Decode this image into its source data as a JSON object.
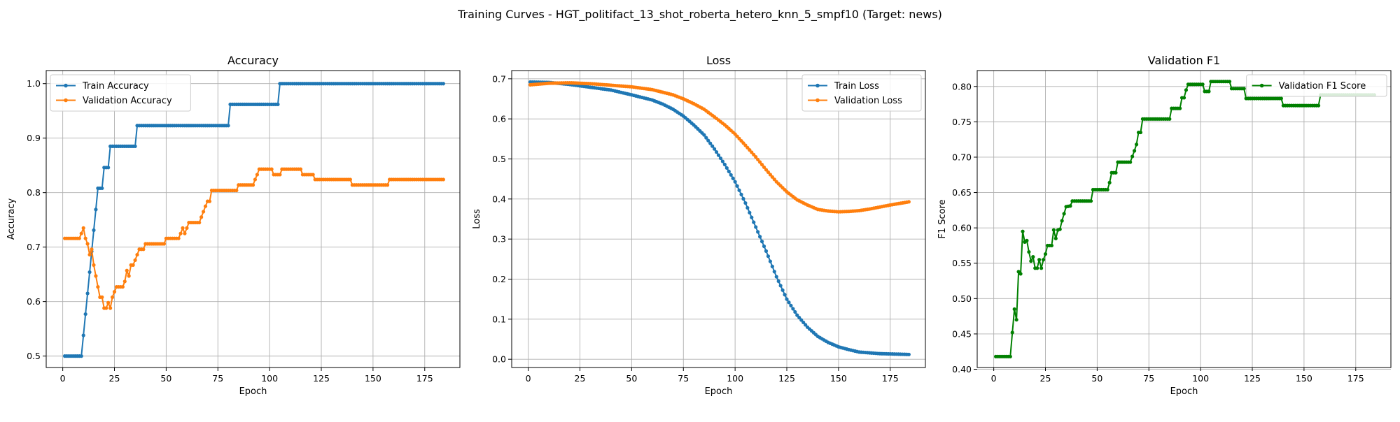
{
  "suptitle": "Training Curves - HGT_politifact_13_shot_roberta_hetero_knn_5_smpf10 (Target: news)",
  "chart_data": [
    {
      "type": "line",
      "title": "Accuracy",
      "xlabel": "Epoch",
      "ylabel": "Accuracy",
      "xlim": [
        -8,
        192
      ],
      "ylim": [
        0.479,
        1.024
      ],
      "xticks": [
        0,
        25,
        50,
        75,
        100,
        125,
        150,
        175
      ],
      "yticks": [
        0.5,
        0.6,
        0.7,
        0.8,
        0.9,
        1.0
      ],
      "ytick_labels": [
        "0.5",
        "0.6",
        "0.7",
        "0.8",
        "0.9",
        "1.0"
      ],
      "grid": true,
      "legend": "upper-left",
      "series": [
        {
          "name": "Train Accuracy",
          "color": "#1f77b4",
          "points": [
            [
              1,
              0.5
            ],
            [
              9,
              0.5
            ],
            [
              10,
              0.538
            ],
            [
              11,
              0.577
            ],
            [
              12,
              0.615
            ],
            [
              13,
              0.654
            ],
            [
              14,
              0.692
            ],
            [
              15,
              0.731
            ],
            [
              16,
              0.769
            ],
            [
              17,
              0.808
            ],
            [
              19,
              0.808
            ],
            [
              20,
              0.846
            ],
            [
              22,
              0.846
            ],
            [
              23,
              0.885
            ],
            [
              35,
              0.885
            ],
            [
              36,
              0.923
            ],
            [
              80,
              0.923
            ],
            [
              81,
              0.962
            ],
            [
              104,
              0.962
            ],
            [
              105,
              1.0
            ],
            [
              184,
              1.0
            ]
          ]
        },
        {
          "name": "Validation Accuracy",
          "color": "#ff7f0e",
          "points": [
            [
              1,
              0.716
            ],
            [
              8,
              0.716
            ],
            [
              9,
              0.725
            ],
            [
              10,
              0.735
            ],
            [
              11,
              0.716
            ],
            [
              12,
              0.706
            ],
            [
              13,
              0.686
            ],
            [
              14,
              0.696
            ],
            [
              15,
              0.667
            ],
            [
              16,
              0.647
            ],
            [
              17,
              0.627
            ],
            [
              18,
              0.608
            ],
            [
              19,
              0.608
            ],
            [
              20,
              0.588
            ],
            [
              21,
              0.588
            ],
            [
              22,
              0.598
            ],
            [
              23,
              0.588
            ],
            [
              24,
              0.608
            ],
            [
              25,
              0.618
            ],
            [
              26,
              0.627
            ],
            [
              29,
              0.627
            ],
            [
              30,
              0.637
            ],
            [
              31,
              0.657
            ],
            [
              32,
              0.647
            ],
            [
              33,
              0.667
            ],
            [
              34,
              0.667
            ],
            [
              35,
              0.676
            ],
            [
              36,
              0.686
            ],
            [
              37,
              0.696
            ],
            [
              39,
              0.696
            ],
            [
              40,
              0.706
            ],
            [
              49,
              0.706
            ],
            [
              50,
              0.716
            ],
            [
              56,
              0.716
            ],
            [
              57,
              0.725
            ],
            [
              58,
              0.735
            ],
            [
              59,
              0.725
            ],
            [
              60,
              0.735
            ],
            [
              61,
              0.745
            ],
            [
              66,
              0.745
            ],
            [
              67,
              0.755
            ],
            [
              68,
              0.765
            ],
            [
              69,
              0.775
            ],
            [
              70,
              0.784
            ],
            [
              71,
              0.784
            ],
            [
              72,
              0.804
            ],
            [
              84,
              0.804
            ],
            [
              85,
              0.814
            ],
            [
              92,
              0.814
            ],
            [
              93,
              0.824
            ],
            [
              94,
              0.833
            ],
            [
              95,
              0.843
            ],
            [
              101,
              0.843
            ],
            [
              102,
              0.833
            ],
            [
              105,
              0.833
            ],
            [
              106,
              0.843
            ],
            [
              115,
              0.843
            ],
            [
              116,
              0.833
            ],
            [
              121,
              0.833
            ],
            [
              122,
              0.824
            ],
            [
              139,
              0.824
            ],
            [
              140,
              0.814
            ],
            [
              157,
              0.814
            ],
            [
              158,
              0.824
            ],
            [
              184,
              0.824
            ]
          ]
        }
      ]
    },
    {
      "type": "line",
      "title": "Loss",
      "xlabel": "Epoch",
      "ylabel": "Loss",
      "xlim": [
        -8,
        192
      ],
      "ylim": [
        -0.0206,
        0.7206
      ],
      "xticks": [
        0,
        25,
        50,
        75,
        100,
        125,
        150,
        175
      ],
      "yticks": [
        0.0,
        0.1,
        0.2,
        0.3,
        0.4,
        0.5,
        0.6,
        0.7
      ],
      "ytick_labels": [
        "0.0",
        "0.1",
        "0.2",
        "0.3",
        "0.4",
        "0.5",
        "0.6",
        "0.7"
      ],
      "grid": true,
      "legend": "upper-right",
      "series": [
        {
          "name": "Train Loss",
          "color": "#1f77b4",
          "points": [
            [
              1,
              0.692
            ],
            [
              10,
              0.691
            ],
            [
              20,
              0.686
            ],
            [
              30,
              0.679
            ],
            [
              40,
              0.672
            ],
            [
              50,
              0.66
            ],
            [
              60,
              0.647
            ],
            [
              65,
              0.637
            ],
            [
              70,
              0.624
            ],
            [
              75,
              0.607
            ],
            [
              80,
              0.585
            ],
            [
              85,
              0.56
            ],
            [
              90,
              0.525
            ],
            [
              95,
              0.486
            ],
            [
              100,
              0.443
            ],
            [
              105,
              0.39
            ],
            [
              110,
              0.33
            ],
            [
              115,
              0.27
            ],
            [
              120,
              0.206
            ],
            [
              125,
              0.15
            ],
            [
              130,
              0.11
            ],
            [
              135,
              0.08
            ],
            [
              140,
              0.057
            ],
            [
              145,
              0.042
            ],
            [
              150,
              0.031
            ],
            [
              155,
              0.024
            ],
            [
              160,
              0.018
            ],
            [
              170,
              0.014
            ],
            [
              184,
              0.012
            ]
          ]
        },
        {
          "name": "Validation Loss",
          "color": "#ff7f0e",
          "points": [
            [
              1,
              0.685
            ],
            [
              10,
              0.689
            ],
            [
              20,
              0.69
            ],
            [
              30,
              0.688
            ],
            [
              40,
              0.684
            ],
            [
              50,
              0.68
            ],
            [
              60,
              0.673
            ],
            [
              70,
              0.66
            ],
            [
              75,
              0.65
            ],
            [
              80,
              0.638
            ],
            [
              85,
              0.624
            ],
            [
              90,
              0.605
            ],
            [
              95,
              0.585
            ],
            [
              100,
              0.562
            ],
            [
              105,
              0.534
            ],
            [
              110,
              0.505
            ],
            [
              115,
              0.473
            ],
            [
              120,
              0.443
            ],
            [
              125,
              0.418
            ],
            [
              130,
              0.398
            ],
            [
              135,
              0.385
            ],
            [
              140,
              0.374
            ],
            [
              145,
              0.37
            ],
            [
              150,
              0.368
            ],
            [
              155,
              0.369
            ],
            [
              160,
              0.371
            ],
            [
              165,
              0.375
            ],
            [
              170,
              0.38
            ],
            [
              175,
              0.385
            ],
            [
              184,
              0.393
            ]
          ]
        }
      ]
    },
    {
      "type": "line",
      "title": "Validation F1",
      "xlabel": "Epoch",
      "ylabel": "F1 Score",
      "xlim": [
        -8,
        192
      ],
      "ylim": [
        0.4025,
        0.8225
      ],
      "xticks": [
        0,
        25,
        50,
        75,
        100,
        125,
        150,
        175
      ],
      "yticks": [
        0.4,
        0.45,
        0.5,
        0.55,
        0.6,
        0.65,
        0.7,
        0.75,
        0.8
      ],
      "ytick_labels": [
        "0.40",
        "0.45",
        "0.50",
        "0.55",
        "0.60",
        "0.65",
        "0.70",
        "0.75",
        "0.80"
      ],
      "grid": true,
      "legend": "upper-right",
      "series": [
        {
          "name": "Validation F1 Score",
          "color": "#008000",
          "points": [
            [
              1,
              0.418
            ],
            [
              8,
              0.418
            ],
            [
              9,
              0.452
            ],
            [
              10,
              0.485
            ],
            [
              11,
              0.47
            ],
            [
              12,
              0.538
            ],
            [
              13,
              0.535
            ],
            [
              14,
              0.595
            ],
            [
              15,
              0.58
            ],
            [
              16,
              0.582
            ],
            [
              17,
              0.566
            ],
            [
              18,
              0.553
            ],
            [
              19,
              0.559
            ],
            [
              20,
              0.543
            ],
            [
              21,
              0.543
            ],
            [
              22,
              0.555
            ],
            [
              23,
              0.543
            ],
            [
              24,
              0.555
            ],
            [
              25,
              0.563
            ],
            [
              26,
              0.575
            ],
            [
              28,
              0.575
            ],
            [
              29,
              0.597
            ],
            [
              30,
              0.585
            ],
            [
              31,
              0.597
            ],
            [
              32,
              0.598
            ],
            [
              33,
              0.61
            ],
            [
              34,
              0.62
            ],
            [
              35,
              0.63
            ],
            [
              37,
              0.631
            ],
            [
              38,
              0.638
            ],
            [
              47,
              0.638
            ],
            [
              48,
              0.654
            ],
            [
              55,
              0.654
            ],
            [
              56,
              0.664
            ],
            [
              57,
              0.678
            ],
            [
              59,
              0.678
            ],
            [
              60,
              0.693
            ],
            [
              66,
              0.693
            ],
            [
              67,
              0.701
            ],
            [
              68,
              0.709
            ],
            [
              69,
              0.718
            ],
            [
              70,
              0.735
            ],
            [
              71,
              0.735
            ],
            [
              72,
              0.754
            ],
            [
              85,
              0.754
            ],
            [
              86,
              0.769
            ],
            [
              90,
              0.769
            ],
            [
              91,
              0.784
            ],
            [
              92,
              0.784
            ],
            [
              93,
              0.795
            ],
            [
              94,
              0.803
            ],
            [
              101,
              0.803
            ],
            [
              102,
              0.793
            ],
            [
              104,
              0.793
            ],
            [
              105,
              0.807
            ],
            [
              114,
              0.807
            ],
            [
              115,
              0.797
            ],
            [
              121,
              0.797
            ],
            [
              122,
              0.783
            ],
            [
              139,
              0.783
            ],
            [
              140,
              0.773
            ],
            [
              157,
              0.773
            ],
            [
              158,
              0.788
            ],
            [
              184,
              0.788
            ]
          ]
        }
      ]
    }
  ]
}
